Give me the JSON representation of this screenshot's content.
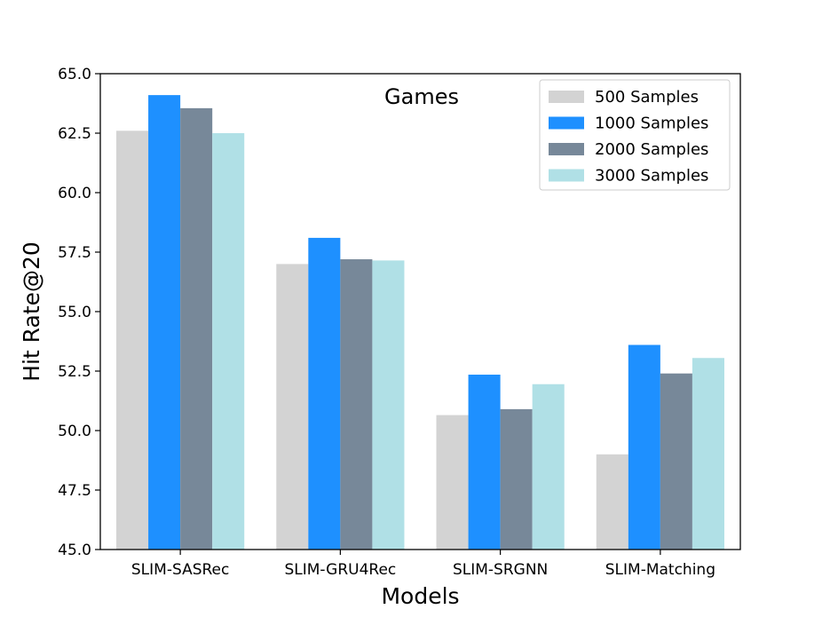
{
  "chart_data": {
    "type": "bar",
    "title": "Games",
    "xlabel": "Models",
    "ylabel": "Hit Rate@20",
    "categories": [
      "SLIM-SASRec",
      "SLIM-GRU4Rec",
      "SLIM-SRGNN",
      "SLIM-Matching"
    ],
    "ylim": [
      45.0,
      65.0
    ],
    "yticks": [
      "45.0",
      "47.5",
      "50.0",
      "52.5",
      "55.0",
      "57.5",
      "60.0",
      "62.5",
      "65.0"
    ],
    "grid": false,
    "legend_position": "top-right",
    "series": [
      {
        "name": "500 Samples",
        "color": "#d3d3d3",
        "values": [
          62.6,
          57.0,
          50.65,
          49.0
        ]
      },
      {
        "name": "1000 Samples",
        "color": "#1e90ff",
        "values": [
          64.1,
          58.1,
          52.35,
          53.6
        ]
      },
      {
        "name": "2000 Samples",
        "color": "#778899",
        "values": [
          63.55,
          57.2,
          50.9,
          52.4
        ]
      },
      {
        "name": "3000 Samples",
        "color": "#b0e0e6",
        "values": [
          62.5,
          57.15,
          51.95,
          53.05
        ]
      }
    ]
  }
}
